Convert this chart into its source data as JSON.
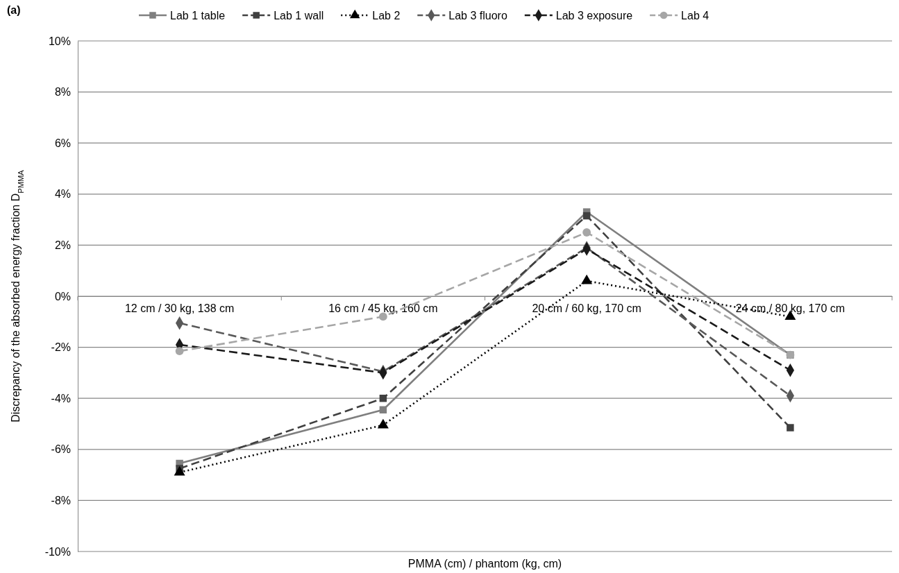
{
  "chart_data": {
    "type": "line",
    "categories": [
      "12 cm / 30 kg, 138 cm",
      "16 cm / 45 kg, 160 cm",
      "20 cm / 60 kg, 170 cm",
      "24 cm / 80 kg, 170 cm"
    ],
    "series": [
      {
        "name": "Lab 1 table",
        "color": "#7f7f7f",
        "marker": "square",
        "line_style": "solid",
        "values": [
          -6.55,
          -4.45,
          3.3,
          -2.3
        ]
      },
      {
        "name": "Lab 1 wall",
        "color": "#404040",
        "marker": "square",
        "line_style": "dashed",
        "values": [
          -6.75,
          -4.0,
          3.15,
          -5.15
        ]
      },
      {
        "name": "Lab 2",
        "color": "#000000",
        "marker": "triangle",
        "line_style": "dotted",
        "values": [
          -6.9,
          -5.05,
          0.6,
          -0.8
        ]
      },
      {
        "name": "Lab 3 fluoro",
        "color": "#595959",
        "marker": "diamond",
        "line_style": "dashed",
        "values": [
          -1.05,
          -2.95,
          1.9,
          -3.9
        ]
      },
      {
        "name": "Lab 3 exposure",
        "color": "#1a1a1a",
        "marker": "diamond",
        "line_style": "dashed",
        "values": [
          -1.9,
          -3.0,
          1.85,
          -2.9
        ]
      },
      {
        "name": "Lab 4",
        "color": "#a6a6a6",
        "marker": "circle",
        "line_style": "dashed",
        "values": [
          -2.15,
          -0.8,
          2.5,
          -2.3
        ]
      }
    ],
    "xlabel": "PMMA (cm) / phantom (kg, cm)",
    "ylabel": "Discrepancy of the absorbed energy fraction D$_{PMMA}$",
    "annotations": [
      "(a)"
    ],
    "ylim": [
      -10,
      10
    ],
    "yticks": [
      {
        "value": -10,
        "label": "-10%"
      },
      {
        "value": -8,
        "label": "-8%"
      },
      {
        "value": -6,
        "label": "-6%"
      },
      {
        "value": -4,
        "label": "-4%"
      },
      {
        "value": -2,
        "label": "-2%"
      },
      {
        "value": 0,
        "label": "0%"
      },
      {
        "value": 2,
        "label": "2%"
      },
      {
        "value": 4,
        "label": "4%"
      },
      {
        "value": 6,
        "label": "6%"
      },
      {
        "value": 8,
        "label": "8%"
      },
      {
        "value": 10,
        "label": "10%"
      }
    ],
    "grid": "y",
    "legend": "top"
  }
}
